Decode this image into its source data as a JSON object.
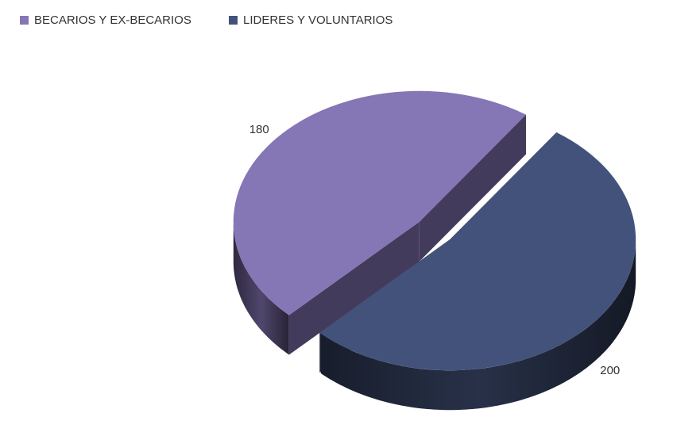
{
  "chart_data": {
    "type": "pie3d",
    "categories": [
      "BECARIOS Y EX-BECARIOS",
      "LIDERES Y VOLUNTARIOS"
    ],
    "values": [
      180,
      200
    ],
    "colors": [
      "#8576b5",
      "#42527a"
    ],
    "legend": "top-left"
  }
}
